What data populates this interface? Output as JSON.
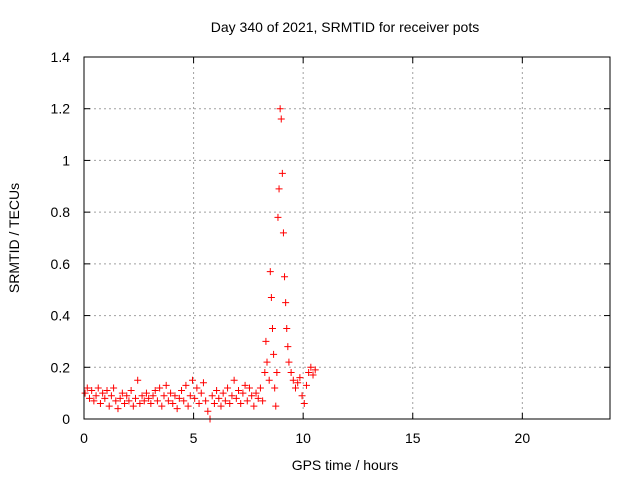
{
  "chart_data": {
    "type": "scatter",
    "title": "Day 340 of 2021, SRMTID for receiver pots",
    "xlabel": "GPS time / hours",
    "ylabel": "SRMTID / TECUs",
    "xlim": [
      0,
      24
    ],
    "ylim": [
      0,
      1.4
    ],
    "xticks": [
      0,
      5,
      10,
      15,
      20
    ],
    "xtick_labels": [
      "0",
      "5",
      "10",
      "15",
      "20"
    ],
    "yticks": [
      0,
      0.2,
      0.4,
      0.6,
      0.8,
      1.0,
      1.2,
      1.4
    ],
    "ytick_labels": [
      "0",
      "0.2",
      "0.4",
      "0.6",
      "0.8",
      "1",
      "1.2",
      "1.4"
    ],
    "grid": true,
    "marker": "plus",
    "color": "#ff0000",
    "series": [
      {
        "name": "SRMTID",
        "points": [
          [
            0.05,
            0.1
          ],
          [
            0.15,
            0.12
          ],
          [
            0.25,
            0.08
          ],
          [
            0.35,
            0.11
          ],
          [
            0.45,
            0.07
          ],
          [
            0.55,
            0.09
          ],
          [
            0.65,
            0.12
          ],
          [
            0.75,
            0.06
          ],
          [
            0.85,
            0.1
          ],
          [
            0.95,
            0.08
          ],
          [
            1.05,
            0.11
          ],
          [
            1.15,
            0.05
          ],
          [
            1.25,
            0.09
          ],
          [
            1.35,
            0.12
          ],
          [
            1.45,
            0.07
          ],
          [
            1.55,
            0.04
          ],
          [
            1.65,
            0.08
          ],
          [
            1.75,
            0.1
          ],
          [
            1.85,
            0.06
          ],
          [
            1.95,
            0.09
          ],
          [
            2.05,
            0.07
          ],
          [
            2.15,
            0.11
          ],
          [
            2.25,
            0.05
          ],
          [
            2.35,
            0.08
          ],
          [
            2.45,
            0.15
          ],
          [
            2.55,
            0.06
          ],
          [
            2.65,
            0.09
          ],
          [
            2.75,
            0.07
          ],
          [
            2.85,
            0.1
          ],
          [
            2.95,
            0.08
          ],
          [
            3.05,
            0.06
          ],
          [
            3.15,
            0.09
          ],
          [
            3.25,
            0.11
          ],
          [
            3.35,
            0.07
          ],
          [
            3.45,
            0.12
          ],
          [
            3.55,
            0.05
          ],
          [
            3.65,
            0.09
          ],
          [
            3.75,
            0.13
          ],
          [
            3.85,
            0.07
          ],
          [
            3.95,
            0.1
          ],
          [
            4.05,
            0.06
          ],
          [
            4.15,
            0.09
          ],
          [
            4.25,
            0.04
          ],
          [
            4.35,
            0.08
          ],
          [
            4.45,
            0.11
          ],
          [
            4.55,
            0.07
          ],
          [
            4.65,
            0.13
          ],
          [
            4.75,
            0.05
          ],
          [
            4.85,
            0.09
          ],
          [
            4.95,
            0.15
          ],
          [
            5.05,
            0.08
          ],
          [
            5.15,
            0.12
          ],
          [
            5.25,
            0.06
          ],
          [
            5.35,
            0.1
          ],
          [
            5.45,
            0.14
          ],
          [
            5.55,
            0.07
          ],
          [
            5.65,
            0.03
          ],
          [
            5.75,
            0.0
          ],
          [
            5.85,
            0.09
          ],
          [
            5.95,
            0.06
          ],
          [
            6.05,
            0.11
          ],
          [
            6.15,
            0.08
          ],
          [
            6.25,
            0.05
          ],
          [
            6.35,
            0.1
          ],
          [
            6.45,
            0.07
          ],
          [
            6.55,
            0.12
          ],
          [
            6.65,
            0.06
          ],
          [
            6.75,
            0.09
          ],
          [
            6.85,
            0.15
          ],
          [
            6.95,
            0.08
          ],
          [
            7.05,
            0.11
          ],
          [
            7.15,
            0.06
          ],
          [
            7.25,
            0.1
          ],
          [
            7.35,
            0.13
          ],
          [
            7.45,
            0.07
          ],
          [
            7.55,
            0.12
          ],
          [
            7.65,
            0.09
          ],
          [
            7.75,
            0.05
          ],
          [
            7.85,
            0.1
          ],
          [
            7.95,
            0.08
          ],
          [
            8.05,
            0.12
          ],
          [
            8.15,
            0.07
          ],
          [
            8.25,
            0.18
          ],
          [
            8.3,
            0.3
          ],
          [
            8.35,
            0.22
          ],
          [
            8.45,
            0.15
          ],
          [
            8.5,
            0.57
          ],
          [
            8.55,
            0.47
          ],
          [
            8.6,
            0.35
          ],
          [
            8.65,
            0.25
          ],
          [
            8.7,
            0.12
          ],
          [
            8.75,
            0.05
          ],
          [
            8.8,
            0.18
          ],
          [
            8.85,
            0.78
          ],
          [
            8.9,
            0.89
          ],
          [
            8.95,
            1.2
          ],
          [
            9.0,
            1.16
          ],
          [
            9.05,
            0.95
          ],
          [
            9.1,
            0.72
          ],
          [
            9.15,
            0.55
          ],
          [
            9.2,
            0.45
          ],
          [
            9.25,
            0.35
          ],
          [
            9.3,
            0.28
          ],
          [
            9.35,
            0.22
          ],
          [
            9.45,
            0.18
          ],
          [
            9.55,
            0.15
          ],
          [
            9.65,
            0.12
          ],
          [
            9.75,
            0.14
          ],
          [
            9.85,
            0.16
          ],
          [
            9.95,
            0.09
          ],
          [
            10.05,
            0.06
          ],
          [
            10.15,
            0.13
          ],
          [
            10.25,
            0.18
          ],
          [
            10.35,
            0.2
          ],
          [
            10.45,
            0.17
          ],
          [
            10.55,
            0.19
          ]
        ]
      }
    ]
  }
}
